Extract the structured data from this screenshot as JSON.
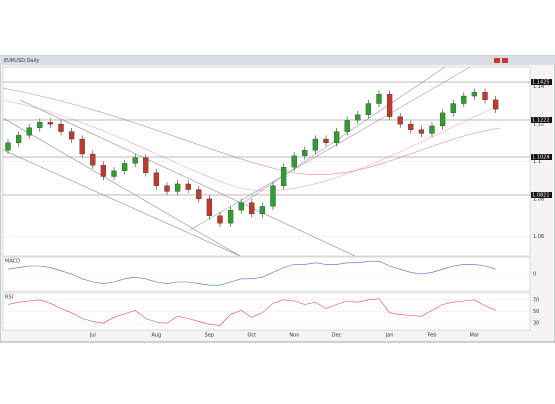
{
  "window": {
    "title": "EURUSD,Daily"
  },
  "chart_data": [
    {
      "type": "candlestick",
      "up_color": "#2e9e2e",
      "down_color": "#c0392b",
      "categories": [
        null,
        null,
        null,
        null,
        null,
        null,
        null,
        null,
        "Jul",
        null,
        null,
        null,
        null,
        null,
        "Aug",
        null,
        null,
        null,
        null,
        "Sep",
        null,
        null,
        null,
        "Oct",
        null,
        null,
        null,
        "Nov",
        null,
        null,
        null,
        "Dec",
        null,
        null,
        null,
        null,
        "Jan",
        null,
        null,
        null,
        "Feb",
        null,
        null,
        null,
        "Mar",
        null,
        null
      ],
      "open": [
        1.106,
        1.11,
        1.114,
        1.118,
        1.121,
        1.12,
        1.116,
        1.112,
        1.104,
        1.098,
        1.092,
        1.095,
        1.099,
        1.102,
        1.094,
        1.087,
        1.084,
        1.088,
        1.085,
        1.08,
        1.071,
        1.067,
        1.074,
        1.078,
        1.072,
        1.076,
        1.087,
        1.097,
        1.103,
        1.106,
        1.112,
        1.11,
        1.116,
        1.122,
        1.125,
        1.131,
        1.136,
        1.124,
        1.12,
        1.117,
        1.115,
        1.119,
        1.126,
        1.131,
        1.135,
        1.137,
        1.133
      ],
      "high": [
        1.112,
        1.116,
        1.12,
        1.123,
        1.123,
        1.122,
        1.118,
        1.114,
        1.106,
        1.1,
        1.097,
        1.101,
        1.104,
        1.104,
        1.096,
        1.089,
        1.09,
        1.09,
        1.087,
        1.082,
        1.073,
        1.076,
        1.08,
        1.08,
        1.078,
        1.089,
        1.099,
        1.105,
        1.108,
        1.114,
        1.114,
        1.118,
        1.124,
        1.127,
        1.133,
        1.138,
        1.138,
        1.126,
        1.122,
        1.119,
        1.121,
        1.128,
        1.133,
        1.137,
        1.139,
        1.139,
        1.135
      ],
      "low": [
        1.104,
        1.108,
        1.112,
        1.116,
        1.118,
        1.114,
        1.11,
        1.102,
        1.096,
        1.09,
        1.09,
        1.093,
        1.097,
        1.092,
        1.085,
        1.082,
        1.082,
        1.083,
        1.078,
        1.069,
        1.065,
        1.065,
        1.072,
        1.07,
        1.07,
        1.074,
        1.085,
        1.095,
        1.101,
        1.104,
        1.108,
        1.108,
        1.114,
        1.12,
        1.123,
        1.129,
        1.122,
        1.118,
        1.115,
        1.113,
        1.113,
        1.117,
        1.124,
        1.129,
        1.133,
        1.131,
        1.126
      ],
      "close": [
        1.11,
        1.114,
        1.118,
        1.121,
        1.12,
        1.116,
        1.112,
        1.104,
        1.098,
        1.092,
        1.095,
        1.099,
        1.102,
        1.094,
        1.087,
        1.084,
        1.088,
        1.085,
        1.08,
        1.071,
        1.067,
        1.074,
        1.078,
        1.072,
        1.076,
        1.087,
        1.097,
        1.103,
        1.106,
        1.112,
        1.11,
        1.116,
        1.122,
        1.125,
        1.131,
        1.136,
        1.124,
        1.12,
        1.117,
        1.115,
        1.119,
        1.126,
        1.131,
        1.135,
        1.137,
        1.133,
        1.128
      ],
      "ylim": [
        1.05,
        1.15
      ],
      "yticks": [
        1.06,
        1.08,
        1.1,
        1.12,
        1.14
      ],
      "levels": [
        1.1425,
        1.1222,
        1.1024,
        1.0821
      ],
      "level_color": "#111111"
    },
    {
      "type": "line",
      "title": "MACD",
      "series": [
        {
          "color": "#4a6fc0",
          "values": [
            0.3,
            0.4,
            0.5,
            0.5,
            0.4,
            0.2,
            0.0,
            -0.3,
            -0.5,
            -0.6,
            -0.5,
            -0.3,
            -0.2,
            -0.3,
            -0.5,
            -0.6,
            -0.5,
            -0.5,
            -0.6,
            -0.7,
            -0.7,
            -0.5,
            -0.3,
            -0.3,
            -0.2,
            0.1,
            0.4,
            0.6,
            0.6,
            0.7,
            0.6,
            0.6,
            0.7,
            0.7,
            0.8,
            0.8,
            0.5,
            0.3,
            0.1,
            0.0,
            0.1,
            0.3,
            0.5,
            0.6,
            0.6,
            0.5,
            0.3
          ]
        }
      ],
      "ylim": [
        -1,
        1
      ],
      "yticks": [
        0
      ]
    },
    {
      "type": "line",
      "title": "RSI",
      "series": [
        {
          "color": "#e05050",
          "values": [
            62,
            66,
            68,
            70,
            64,
            55,
            48,
            38,
            33,
            30,
            40,
            46,
            52,
            38,
            32,
            30,
            42,
            38,
            33,
            28,
            26,
            45,
            52,
            40,
            48,
            64,
            70,
            68,
            62,
            66,
            55,
            62,
            68,
            66,
            70,
            72,
            48,
            45,
            43,
            42,
            52,
            62,
            66,
            68,
            70,
            60,
            52
          ]
        }
      ],
      "ylim": [
        20,
        80
      ],
      "yticks": [
        30,
        50,
        70
      ]
    }
  ]
}
